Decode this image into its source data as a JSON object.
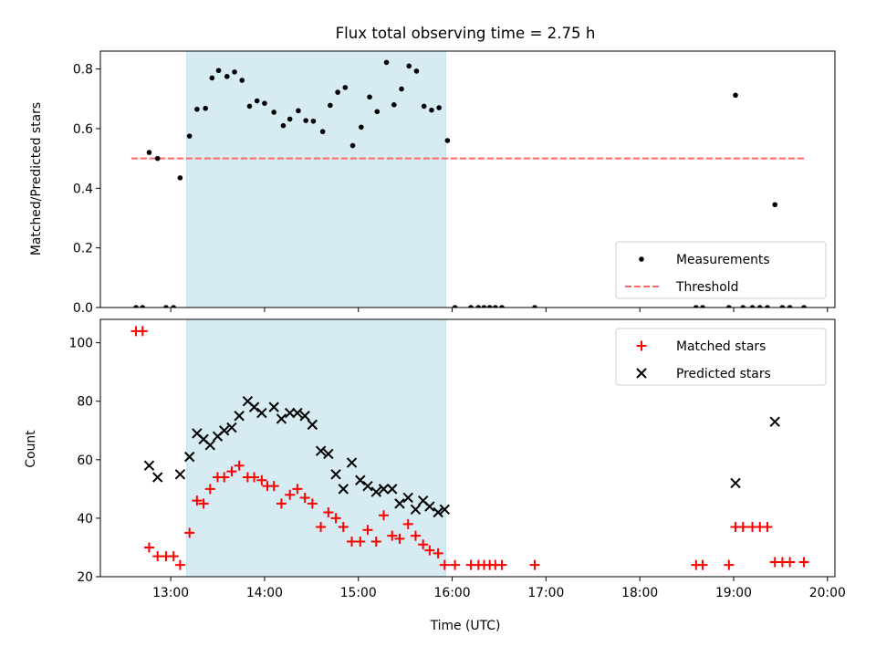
{
  "chart_data": [
    {
      "type": "scatter",
      "title": "Flux total observing time = 2.75 h",
      "xlabel": "",
      "ylabel": "Matched/Predicted stars",
      "xlim": [
        12.25,
        20.08
      ],
      "ylim": [
        0,
        0.86
      ],
      "yticks": [
        0.0,
        0.2,
        0.4,
        0.6,
        0.8
      ],
      "ytick_labels": [
        "0.0",
        "0.2",
        "0.4",
        "0.6",
        "0.8"
      ],
      "shaded_region": {
        "start": 13.17,
        "end": 15.93,
        "color": "#add8e6"
      },
      "threshold": {
        "name": "Threshold",
        "value": 0.5,
        "x_start": 12.58,
        "x_end": 19.75,
        "color": "#ff6666",
        "style": "dashed"
      },
      "legend": {
        "position": "bottom-right",
        "entries": [
          "Measurements",
          "Threshold"
        ]
      },
      "series": [
        {
          "name": "Measurements",
          "marker": "dot",
          "color": "#000000",
          "points": [
            [
              12.63,
              0.0
            ],
            [
              12.7,
              0.0
            ],
            [
              12.77,
              0.52
            ],
            [
              12.86,
              0.5
            ],
            [
              12.95,
              0.0
            ],
            [
              13.03,
              0.0
            ],
            [
              13.1,
              0.435
            ],
            [
              13.2,
              0.575
            ],
            [
              13.28,
              0.665
            ],
            [
              13.37,
              0.668
            ],
            [
              13.44,
              0.77
            ],
            [
              13.51,
              0.795
            ],
            [
              13.6,
              0.775
            ],
            [
              13.68,
              0.79
            ],
            [
              13.76,
              0.762
            ],
            [
              13.84,
              0.675
            ],
            [
              13.92,
              0.693
            ],
            [
              14.0,
              0.685
            ],
            [
              14.1,
              0.655
            ],
            [
              14.2,
              0.61
            ],
            [
              14.27,
              0.632
            ],
            [
              14.36,
              0.66
            ],
            [
              14.44,
              0.627
            ],
            [
              14.52,
              0.625
            ],
            [
              14.62,
              0.59
            ],
            [
              14.7,
              0.678
            ],
            [
              14.78,
              0.722
            ],
            [
              14.86,
              0.738
            ],
            [
              14.94,
              0.543
            ],
            [
              15.03,
              0.605
            ],
            [
              15.12,
              0.706
            ],
            [
              15.2,
              0.657
            ],
            [
              15.3,
              0.822
            ],
            [
              15.38,
              0.68
            ],
            [
              15.46,
              0.733
            ],
            [
              15.54,
              0.81
            ],
            [
              15.62,
              0.793
            ],
            [
              15.7,
              0.675
            ],
            [
              15.78,
              0.662
            ],
            [
              15.86,
              0.67
            ],
            [
              15.95,
              0.56
            ],
            [
              16.03,
              0.0
            ],
            [
              16.2,
              0.0
            ],
            [
              16.28,
              0.0
            ],
            [
              16.34,
              0.0
            ],
            [
              16.4,
              0.0
            ],
            [
              16.46,
              0.0
            ],
            [
              16.53,
              0.0
            ],
            [
              16.88,
              0.0
            ],
            [
              18.6,
              0.0
            ],
            [
              18.67,
              0.0
            ],
            [
              18.95,
              0.0
            ],
            [
              19.02,
              0.712
            ],
            [
              19.1,
              0.0
            ],
            [
              19.2,
              0.0
            ],
            [
              19.28,
              0.0
            ],
            [
              19.36,
              0.0
            ],
            [
              19.44,
              0.345
            ],
            [
              19.52,
              0.0
            ],
            [
              19.6,
              0.0
            ],
            [
              19.75,
              0.0
            ]
          ]
        }
      ]
    },
    {
      "type": "scatter",
      "title": "",
      "xlabel": "Time (UTC)",
      "ylabel": "Count",
      "xlim": [
        12.25,
        20.08
      ],
      "ylim": [
        20,
        108
      ],
      "yticks": [
        20,
        40,
        60,
        80,
        100
      ],
      "ytick_labels": [
        "20",
        "40",
        "60",
        "80",
        "100"
      ],
      "xticks": [
        13,
        14,
        15,
        16,
        17,
        18,
        19,
        20
      ],
      "xtick_labels": [
        "13:00",
        "14:00",
        "15:00",
        "16:00",
        "17:00",
        "18:00",
        "19:00",
        "20:00"
      ],
      "shaded_region": {
        "start": 13.17,
        "end": 15.93,
        "color": "#add8e6"
      },
      "legend": {
        "position": "top-right",
        "entries": [
          "Matched stars",
          "Predicted stars"
        ]
      },
      "series": [
        {
          "name": "Matched stars",
          "marker": "plus",
          "color": "#ff0000",
          "points": [
            [
              12.63,
              104
            ],
            [
              12.7,
              104
            ],
            [
              12.77,
              30
            ],
            [
              12.86,
              27
            ],
            [
              12.95,
              27
            ],
            [
              13.03,
              27
            ],
            [
              13.1,
              24
            ],
            [
              13.2,
              35
            ],
            [
              13.28,
              46
            ],
            [
              13.35,
              45
            ],
            [
              13.42,
              50
            ],
            [
              13.5,
              54
            ],
            [
              13.57,
              54
            ],
            [
              13.65,
              56
            ],
            [
              13.73,
              58
            ],
            [
              13.82,
              54
            ],
            [
              13.89,
              54
            ],
            [
              13.97,
              53
            ],
            [
              14.03,
              51
            ],
            [
              14.1,
              51
            ],
            [
              14.18,
              45
            ],
            [
              14.27,
              48
            ],
            [
              14.35,
              50
            ],
            [
              14.43,
              47
            ],
            [
              14.51,
              45
            ],
            [
              14.6,
              37
            ],
            [
              14.68,
              42
            ],
            [
              14.76,
              40
            ],
            [
              14.84,
              37
            ],
            [
              14.93,
              32
            ],
            [
              15.02,
              32
            ],
            [
              15.1,
              36
            ],
            [
              15.19,
              32
            ],
            [
              15.27,
              41
            ],
            [
              15.36,
              34
            ],
            [
              15.44,
              33
            ],
            [
              15.53,
              38
            ],
            [
              15.61,
              34
            ],
            [
              15.69,
              31
            ],
            [
              15.76,
              29
            ],
            [
              15.85,
              28
            ],
            [
              15.92,
              24
            ],
            [
              16.03,
              24
            ],
            [
              16.2,
              24
            ],
            [
              16.28,
              24
            ],
            [
              16.34,
              24
            ],
            [
              16.4,
              24
            ],
            [
              16.46,
              24
            ],
            [
              16.53,
              24
            ],
            [
              16.88,
              24
            ],
            [
              18.6,
              24
            ],
            [
              18.67,
              24
            ],
            [
              18.95,
              24
            ],
            [
              19.02,
              37
            ],
            [
              19.1,
              37
            ],
            [
              19.2,
              37
            ],
            [
              19.28,
              37
            ],
            [
              19.36,
              37
            ],
            [
              19.44,
              25
            ],
            [
              19.52,
              25
            ],
            [
              19.6,
              25
            ],
            [
              19.75,
              25
            ]
          ]
        },
        {
          "name": "Predicted stars",
          "marker": "x",
          "color": "#000000",
          "points": [
            [
              12.77,
              58
            ],
            [
              12.86,
              54
            ],
            [
              13.1,
              55
            ],
            [
              13.2,
              61
            ],
            [
              13.28,
              69
            ],
            [
              13.35,
              67
            ],
            [
              13.42,
              65
            ],
            [
              13.5,
              68
            ],
            [
              13.57,
              70
            ],
            [
              13.65,
              71
            ],
            [
              13.73,
              75
            ],
            [
              13.82,
              80
            ],
            [
              13.89,
              78
            ],
            [
              13.97,
              76
            ],
            [
              14.1,
              78
            ],
            [
              14.18,
              74
            ],
            [
              14.27,
              76
            ],
            [
              14.35,
              76
            ],
            [
              14.43,
              75
            ],
            [
              14.51,
              72
            ],
            [
              14.6,
              63
            ],
            [
              14.68,
              62
            ],
            [
              14.76,
              55
            ],
            [
              14.84,
              50
            ],
            [
              14.93,
              59
            ],
            [
              15.02,
              53
            ],
            [
              15.1,
              51
            ],
            [
              15.19,
              49
            ],
            [
              15.27,
              50
            ],
            [
              15.36,
              50
            ],
            [
              15.44,
              45
            ],
            [
              15.53,
              47
            ],
            [
              15.61,
              43
            ],
            [
              15.69,
              46
            ],
            [
              15.76,
              44
            ],
            [
              15.85,
              42
            ],
            [
              15.92,
              43
            ],
            [
              19.02,
              52
            ],
            [
              19.44,
              73
            ]
          ]
        }
      ]
    }
  ]
}
